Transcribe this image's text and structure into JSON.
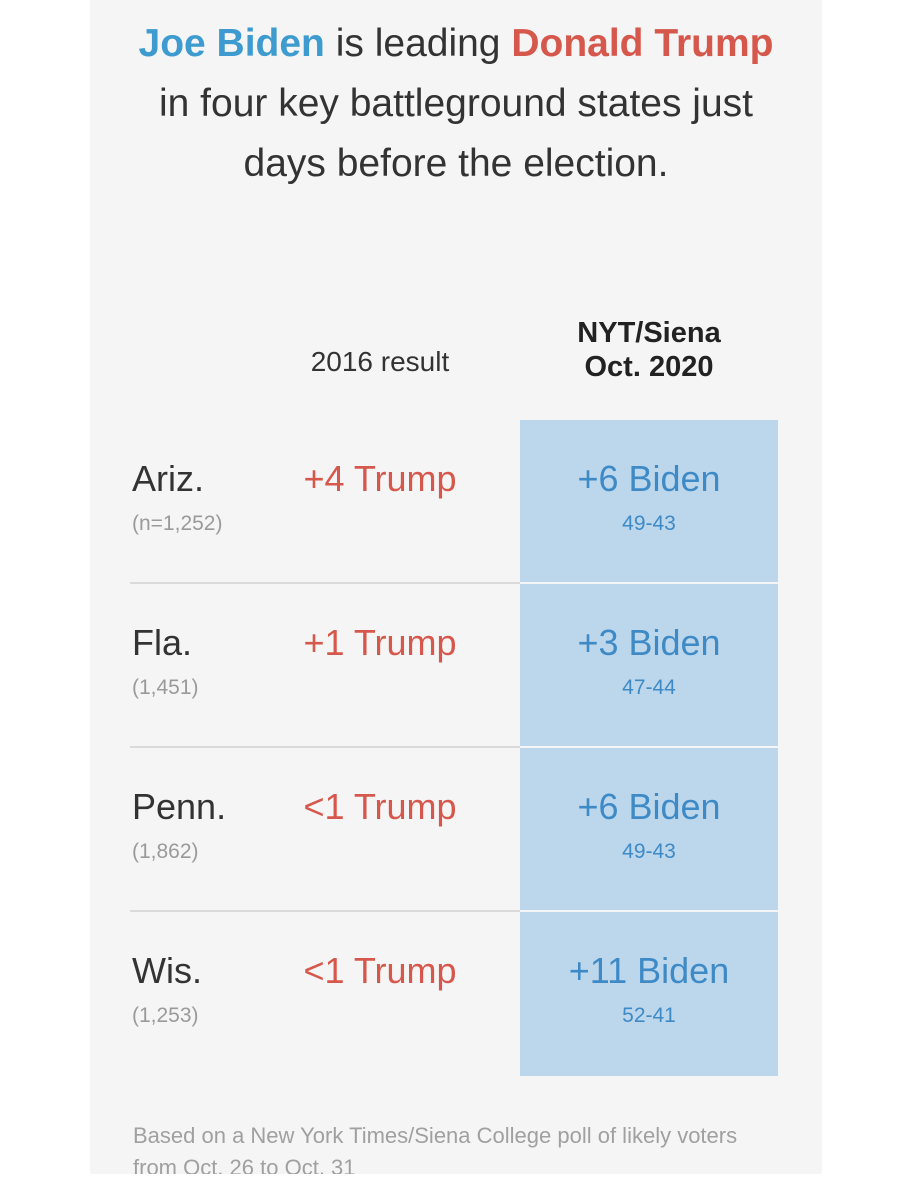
{
  "headline": {
    "biden": "Joe Biden",
    "part1": " is leading ",
    "trump": "Donald Trump",
    "part2": " in four key battleground states just days before the election."
  },
  "columns": {
    "result_2016": "2016 result",
    "poll_line1": "NYT/Siena",
    "poll_line2": "Oct. 2020"
  },
  "colors": {
    "biden": "#3e9bd0",
    "trump": "#d6584c",
    "highlight": "#bcd7ec"
  },
  "chart_data": {
    "type": "table",
    "rows": [
      {
        "state": "Ariz.",
        "sample": "(n=1,252)",
        "result_2016": "+4 Trump",
        "poll": "+6 Biden",
        "score": "49-43"
      },
      {
        "state": "Fla.",
        "sample": "(1,451)",
        "result_2016": "+1 Trump",
        "poll": "+3 Biden",
        "score": "47-44"
      },
      {
        "state": "Penn.",
        "sample": "(1,862)",
        "result_2016": "<1 Trump",
        "poll": "+6 Biden",
        "score": "49-43"
      },
      {
        "state": "Wis.",
        "sample": "(1,253)",
        "result_2016": "<1 Trump",
        "poll": "+11 Biden",
        "score": "52-41"
      }
    ]
  },
  "note": "Based on a New York Times/Siena College poll of likely voters from Oct. 26 to Oct. 31"
}
